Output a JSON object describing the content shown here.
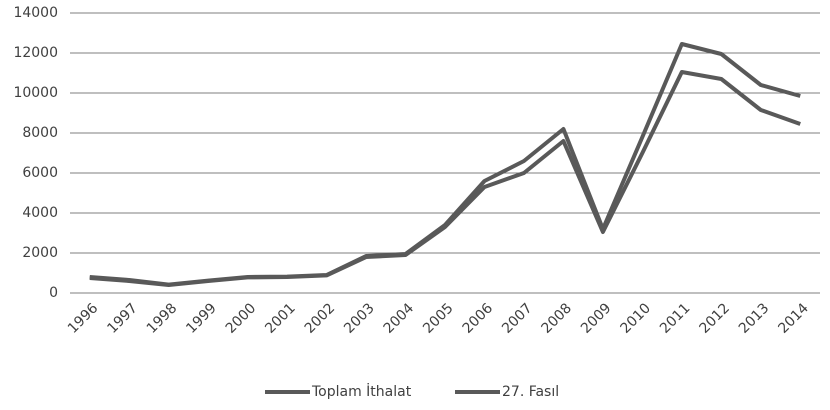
{
  "chart_data": {
    "type": "line",
    "categories": [
      "1996",
      "1997",
      "1998",
      "1999",
      "2000",
      "2001",
      "2002",
      "2003",
      "2004",
      "2005",
      "2006",
      "2007",
      "2008",
      "2009",
      "2010",
      "2011",
      "2012",
      "2013",
      "2014"
    ],
    "series": [
      {
        "name": "Toplam İthalat",
        "color": "#595959",
        "values": [
          800,
          650,
          420,
          620,
          800,
          820,
          900,
          1850,
          1950,
          3400,
          5600,
          6600,
          8200,
          3200,
          7800,
          12450,
          11950,
          10400,
          9850
        ]
      },
      {
        "name": "27. Fasıl",
        "color": "#595959",
        "values": [
          750,
          600,
          400,
          600,
          780,
          800,
          880,
          1800,
          1900,
          3300,
          5300,
          6000,
          7600,
          3050,
          7000,
          11050,
          10700,
          9150,
          8450
        ]
      }
    ],
    "ylim": [
      0,
      14000
    ],
    "yticks": [
      0,
      2000,
      4000,
      6000,
      8000,
      10000,
      12000,
      14000
    ],
    "grid": true,
    "legend": "bottom"
  }
}
